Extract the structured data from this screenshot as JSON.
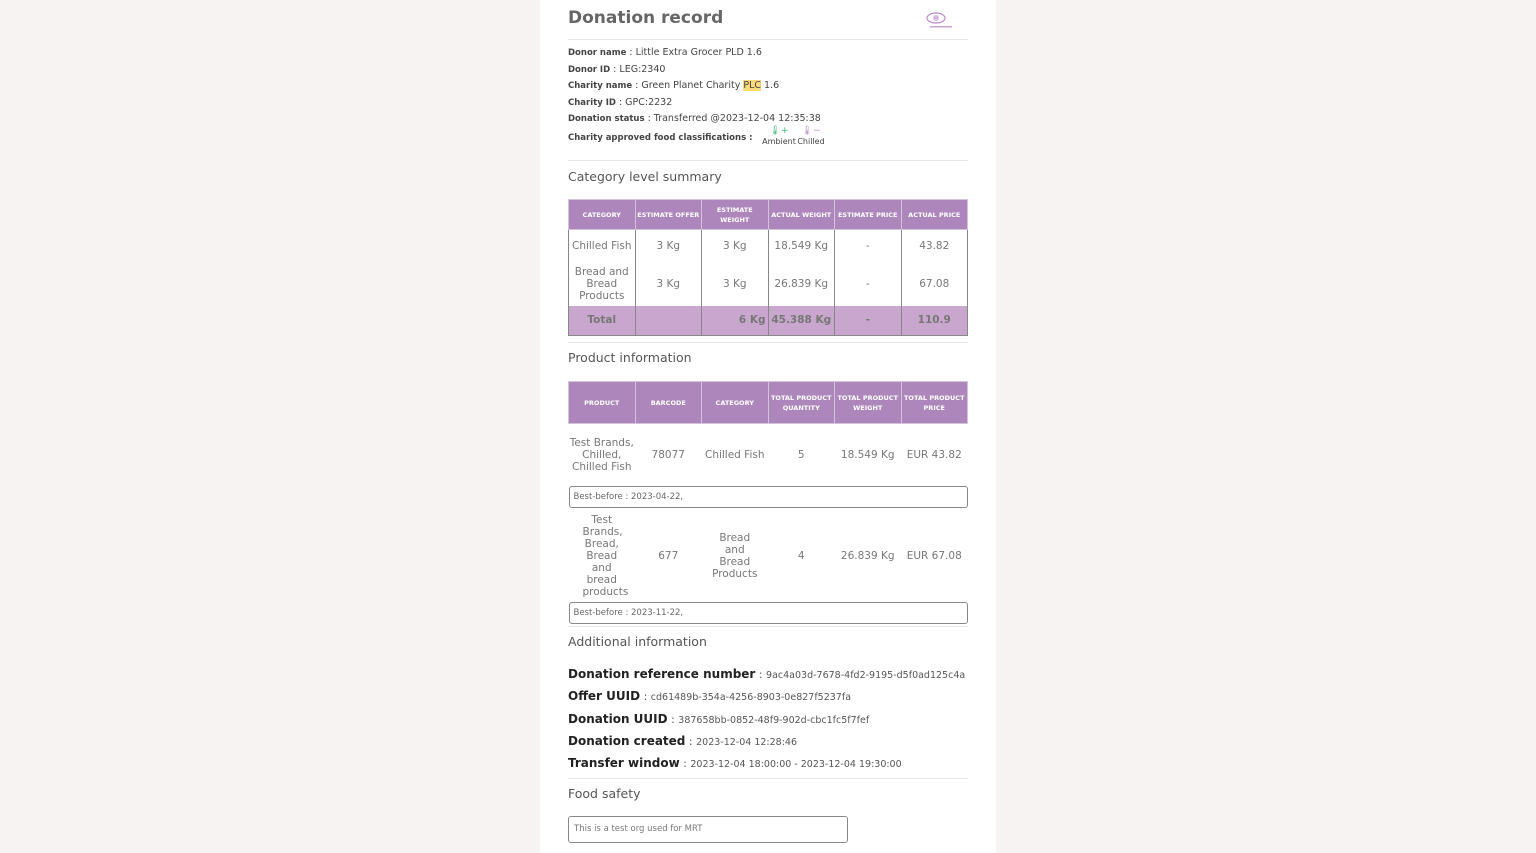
{
  "title": "Donation record",
  "logo": {
    "name": "foodcloud-logo",
    "color": "#b889c9"
  },
  "details": [
    {
      "label": "Donor name",
      "value": "Little Extra Grocer PLD 1.6"
    },
    {
      "label": "Donor ID",
      "value": "LEG:2340"
    },
    {
      "label": "Charity name",
      "value": "Green Planet Charity ",
      "highlight": "PLC",
      "suffix": " 1.6"
    },
    {
      "label": "Charity ID",
      "value": "GPC:2232"
    },
    {
      "label": "Donation status",
      "value": "Transferred @2023-12-04 12:35:38"
    }
  ],
  "classifications": {
    "label": "Charity approved food classifications :",
    "items": [
      {
        "name": "Ambient",
        "icon": "thermometer-plus-icon",
        "color": "#3cb878"
      },
      {
        "name": "Chilled",
        "icon": "thermometer-minus-icon",
        "color": "#b38bc7"
      }
    ]
  },
  "category_summary": {
    "title": "Category level summary",
    "headers": [
      "Category",
      "Estimate offer",
      "Estimate weight",
      "Actual weight",
      "Estimate price",
      "Actual price"
    ],
    "rows": [
      [
        "Chilled Fish",
        "3 Kg",
        "3 Kg",
        "18.549 Kg",
        "-",
        "43.82"
      ],
      [
        "Bread and Bread Products",
        "3 Kg",
        "3 Kg",
        "26.839 Kg",
        "-",
        "67.08"
      ]
    ],
    "total": [
      "Total",
      "",
      "6 Kg",
      "45.388 Kg",
      "-",
      "110.9"
    ]
  },
  "product_info": {
    "title": "Product information",
    "headers": [
      "Product",
      "Barcode",
      "Category",
      "Total product quantity",
      "Total product weight",
      "Total product price"
    ],
    "rows": [
      {
        "cells": [
          "Test Brands, Chilled, Chilled Fish",
          "78077",
          "Chilled Fish",
          "5",
          "18.549 Kg",
          "EUR 43.82"
        ],
        "best_before": "Best-before : 2023-04-22,"
      },
      {
        "cells": [
          "Test Brands, Bread, Bread and bread products",
          "677",
          "Bread and Bread Products",
          "4",
          "26.839 Kg",
          "EUR 67.08"
        ],
        "best_before": "Best-before : 2023-11-22,"
      }
    ]
  },
  "additional": {
    "title": "Additional information",
    "items": [
      {
        "label": "Donation reference number",
        "value": "9ac4a03d-7678-4fd2-9195-d5f0ad125c4a"
      },
      {
        "label": "Offer UUID",
        "value": "cd61489b-354a-4256-8903-0e827f5237fa"
      },
      {
        "label": "Donation UUID",
        "value": "387658bb-0852-48f9-902d-cbc1fc5f7fef"
      },
      {
        "label": "Donation created",
        "value": "2023-12-04 12:28:46"
      },
      {
        "label": "Transfer window",
        "value": "2023-12-04 18:00:00 - 2023-12-04 19:30:00"
      }
    ]
  },
  "food_safety": {
    "title": "Food safety",
    "value": "This is a test org used for MRT"
  },
  "colors": {
    "header": "#ad87bb",
    "total": "#c9a6cd",
    "highlight": "#fcd97a"
  }
}
